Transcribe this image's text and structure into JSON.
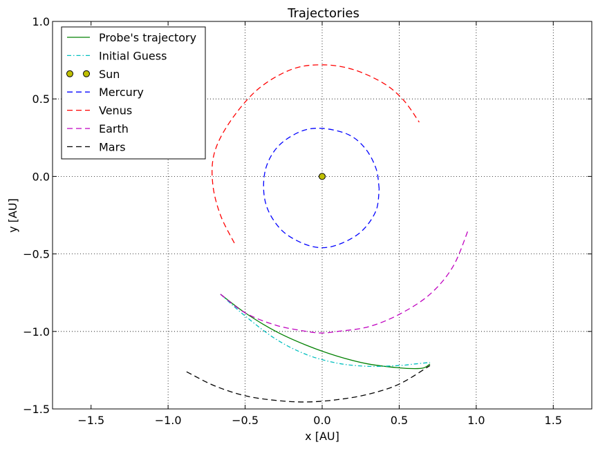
{
  "chart_data": {
    "type": "line",
    "title": "Trajectories",
    "xlabel": "x [AU]",
    "ylabel": "y [AU]",
    "xlim": [
      -1.75,
      1.75
    ],
    "ylim": [
      -1.5,
      1.0
    ],
    "xticks": [
      -1.5,
      -1.0,
      -0.5,
      0.0,
      0.5,
      1.0,
      1.5
    ],
    "xtick_labels": [
      "−1.5",
      "−1.0",
      "−0.5",
      "0.0",
      "0.5",
      "1.0",
      "1.5"
    ],
    "yticks": [
      -1.5,
      -1.0,
      -0.5,
      0.0,
      0.5,
      1.0
    ],
    "ytick_labels": [
      "−1.5",
      "−1.0",
      "−0.5",
      "0.0",
      "0.5",
      "1.0"
    ],
    "grid": true,
    "legend_position": "top-left",
    "series": [
      {
        "name": "Probe's trajectory",
        "color": "#008000",
        "style": "solid",
        "x": [
          -0.66,
          -0.5,
          -0.3,
          -0.1,
          0.1,
          0.3,
          0.5,
          0.6,
          0.66,
          0.7
        ],
        "y": [
          -0.76,
          -0.88,
          -1.0,
          -1.09,
          -1.16,
          -1.21,
          -1.235,
          -1.24,
          -1.235,
          -1.21
        ]
      },
      {
        "name": "Initial Guess",
        "color": "#00bfbf",
        "style": "dashdot",
        "x": [
          -0.66,
          -0.5,
          -0.3,
          -0.1,
          0.1,
          0.3,
          0.5,
          0.6,
          0.7
        ],
        "y": [
          -0.76,
          -0.9,
          -1.05,
          -1.15,
          -1.205,
          -1.225,
          -1.22,
          -1.21,
          -1.2
        ]
      },
      {
        "name": "Sun",
        "color": "#bfbf00",
        "style": "marker",
        "x": [
          0.0
        ],
        "y": [
          0.0
        ]
      },
      {
        "name": "Mercury",
        "color": "#0000ff",
        "style": "dashed",
        "x": [
          0.37,
          0.35,
          0.28,
          0.17,
          0.0,
          -0.14,
          -0.28,
          -0.36,
          -0.38,
          -0.35,
          -0.26,
          -0.13,
          0.0,
          0.13,
          0.26,
          0.35,
          0.37
        ],
        "y": [
          -0.08,
          0.05,
          0.18,
          0.27,
          0.31,
          0.29,
          0.2,
          0.07,
          -0.08,
          -0.22,
          -0.35,
          -0.43,
          -0.46,
          -0.43,
          -0.35,
          -0.22,
          -0.08
        ]
      },
      {
        "name": "Venus",
        "color": "#ff0000",
        "style": "dashed",
        "x": [
          -0.57,
          -0.66,
          -0.71,
          -0.7,
          -0.6,
          -0.42,
          -0.2,
          0.0,
          0.2,
          0.4,
          0.53,
          0.63
        ],
        "y": [
          -0.43,
          -0.25,
          -0.05,
          0.15,
          0.35,
          0.56,
          0.69,
          0.72,
          0.69,
          0.6,
          0.49,
          0.35
        ]
      },
      {
        "name": "Earth",
        "color": "#bf00bf",
        "style": "dashed",
        "x": [
          -0.66,
          -0.5,
          -0.3,
          -0.1,
          0.0,
          0.1,
          0.3,
          0.5,
          0.7,
          0.85,
          0.95
        ],
        "y": [
          -0.76,
          -0.88,
          -0.96,
          -1.0,
          -1.01,
          -1.0,
          -0.97,
          -0.89,
          -0.76,
          -0.58,
          -0.34
        ]
      },
      {
        "name": "Mars",
        "color": "#000000",
        "style": "dashed",
        "x": [
          -0.88,
          -0.7,
          -0.5,
          -0.3,
          -0.1,
          0.1,
          0.3,
          0.5,
          0.7
        ],
        "y": [
          -1.26,
          -1.35,
          -1.415,
          -1.445,
          -1.455,
          -1.44,
          -1.405,
          -1.34,
          -1.22
        ]
      }
    ]
  }
}
